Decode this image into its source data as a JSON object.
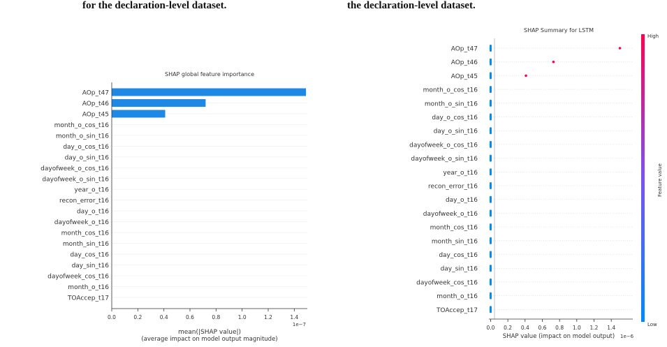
{
  "captions": {
    "left": "for the declaration-level dataset.",
    "right": "the declaration-level dataset."
  },
  "chart_data": [
    {
      "type": "bar",
      "orientation": "horizontal",
      "title": "SHAP global feature importance",
      "xlabel_line1": "mean(|SHAP value|)",
      "xlabel_line2": "(average impact on model output magnitude)",
      "offset_text": "1e−7",
      "xlim": [
        0,
        1.5
      ],
      "xticks": [
        "0.0",
        "0.2",
        "0.4",
        "0.6",
        "0.8",
        "1.0",
        "1.2",
        "1.4"
      ],
      "bar_color": "#1e88e5",
      "categories": [
        "AOp_t47",
        "AOp_t46",
        "AOp_t45",
        "month_o_cos_t16",
        "month_o_sin_t16",
        "day_o_cos_t16",
        "day_o_sin_t16",
        "dayofweek_o_cos_t16",
        "dayofweek_o_sin_t16",
        "year_o_t16",
        "recon_error_t16",
        "day_o_t16",
        "dayofweek_o_t16",
        "month_cos_t16",
        "month_sin_t16",
        "day_cos_t16",
        "day_sin_t16",
        "dayofweek_cos_t16",
        "month_o_t16",
        "TOAccep_t17"
      ],
      "values": [
        1.49,
        0.72,
        0.41,
        0,
        0,
        0,
        0,
        0,
        0,
        0,
        0,
        0,
        0,
        0,
        0,
        0,
        0,
        0,
        0,
        0
      ]
    },
    {
      "type": "scatter",
      "title": "SHAP Summary for LSTM",
      "xlabel": "SHAP value (impact on model output)",
      "offset_text": "1e−6",
      "xlim": [
        -0.02,
        1.65
      ],
      "xticks": [
        "0.0",
        "0.2",
        "0.4",
        "0.6",
        "0.8",
        "1.0",
        "1.2",
        "1.4"
      ],
      "colorbar_label": "Feature value",
      "colorbar_high": "High",
      "colorbar_low": "Low",
      "colors": {
        "high": "#ff0052",
        "low": "#008bfb"
      },
      "categories": [
        "AOp_t47",
        "AOp_t46",
        "AOp_t45",
        "month_o_cos_t16",
        "month_o_sin_t16",
        "day_o_cos_t16",
        "day_o_sin_t16",
        "dayofweek_o_cos_t16",
        "dayofweek_o_sin_t16",
        "year_o_t16",
        "recon_error_t16",
        "day_o_t16",
        "dayofweek_o_t16",
        "month_cos_t16",
        "month_sin_t16",
        "day_cos_t16",
        "day_sin_t16",
        "dayofweek_cos_t16",
        "month_o_t16",
        "TOAccep_t17"
      ],
      "high_points": [
        1.5,
        0.73,
        0.41
      ]
    }
  ]
}
